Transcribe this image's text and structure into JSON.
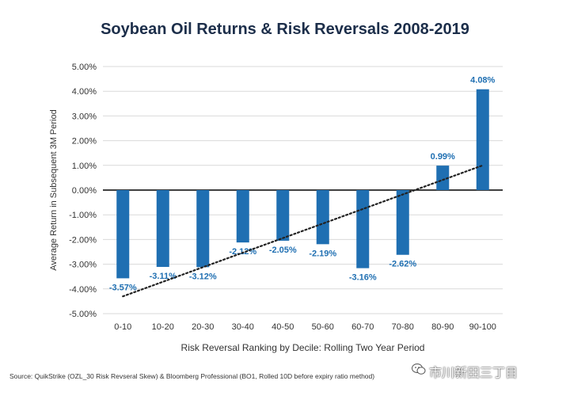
{
  "chart_data": {
    "type": "bar",
    "title": "Soybean Oil Returns & Risk Reversals 2008-2019",
    "xlabel": "Risk Reversal Ranking by Decile: Rolling Two Year Period",
    "ylabel": "Average Return in Subsequent 3M Period",
    "categories": [
      "0-10",
      "10-20",
      "20-30",
      "30-40",
      "40-50",
      "50-60",
      "60-70",
      "70-80",
      "80-90",
      "90-100"
    ],
    "values": [
      -3.57,
      -3.11,
      -3.12,
      -2.12,
      -2.05,
      -2.19,
      -3.16,
      -2.62,
      0.99,
      4.08
    ],
    "value_labels": [
      "-3.57%",
      "-3.11%",
      "-3.12%",
      "-2.12%",
      "-2.05%",
      "-2.19%",
      "-3.16%",
      "-2.62%",
      "0.99%",
      "4.08%"
    ],
    "ylim": [
      -5,
      5
    ],
    "yticks": [
      5,
      4,
      3,
      2,
      1,
      0,
      -1,
      -2,
      -3,
      -4,
      -5
    ],
    "ytick_labels": [
      "5.00%",
      "4.00%",
      "3.00%",
      "2.00%",
      "1.00%",
      "0.00%",
      "-1.00%",
      "-2.00%",
      "-3.00%",
      "-4.00%",
      "-5.00%"
    ],
    "trendline": {
      "style": "dotted",
      "start": [
        0,
        -4.3
      ],
      "end": [
        9,
        1.0
      ]
    },
    "grid": true,
    "legend": "none",
    "bar_color": "#1f6fb2",
    "label_color": "#1f6fb2",
    "title_color": "#1c2e4a"
  },
  "source": "Source: QuikStrike (OZL_30 Risk Revseral Skew) & Bloomberg Professional (BO1, Rolled 10D before expiry ratio method)",
  "watermark": "市川新田三丁目"
}
